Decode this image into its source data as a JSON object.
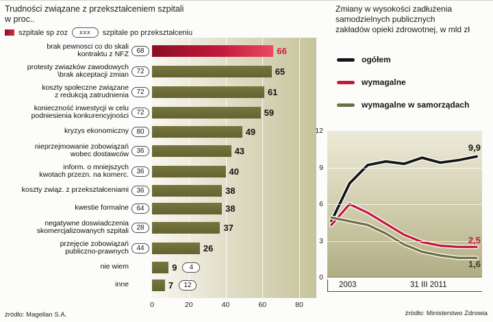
{
  "left_chart": {
    "title_lines": [
      "Trudności związane z przekształceniem szpitali",
      "w proc.."
    ],
    "legend_sq_label": "szpitale sp zoz",
    "legend_oval_text": "xxx",
    "legend_oval_label": "szpitale po przekształceniu",
    "source": "źródło: Magellan S.A."
  },
  "right_chart": {
    "title_lines": [
      "Zmiany w wysokości zadłużenia",
      "samodzielnych publicznych",
      "zakładów opieki zdrowotnej, w mld zł"
    ],
    "source": "źródło: Ministerstwo Zdrowia"
  },
  "chart_data": [
    {
      "type": "bar",
      "orientation": "horizontal",
      "title": "Trudności związane z przekształceniem szpitali w proc..",
      "xlim": [
        0,
        80
      ],
      "x_ticks": [
        0,
        20,
        40,
        60,
        80
      ],
      "bar_color": "#6a6b35",
      "highlight_color": "#cf1a3c",
      "series_names": [
        "szpitale sp zoz",
        "szpitale po przekształceniu"
      ],
      "items": [
        {
          "label_lines": [
            "brak pewnosci co do skali",
            "kontraktu z NFZ"
          ],
          "bar_value": 66,
          "oval_value": 68,
          "highlight": true
        },
        {
          "label_lines": [
            "protesty zwiazków zawodowych",
            "\\brak akceptacji zmian"
          ],
          "bar_value": 65,
          "oval_value": 72
        },
        {
          "label_lines": [
            "koszty społeczne związane",
            "z redukcją zatrudnienia"
          ],
          "bar_value": 61,
          "oval_value": 72
        },
        {
          "label_lines": [
            "konieczność inwestycji w celu",
            "podniesienia konkurencyjności"
          ],
          "bar_value": 59,
          "oval_value": 72
        },
        {
          "label_lines": [
            "kryzys ekonomiczny"
          ],
          "bar_value": 49,
          "oval_value": 80
        },
        {
          "label_lines": [
            "nieprzejmowanie zobowiązań",
            "wobec dostawców"
          ],
          "bar_value": 43,
          "oval_value": 36
        },
        {
          "label_lines": [
            "inform. o mniejszych",
            "kwotach przezn. na komerc."
          ],
          "bar_value": 40,
          "oval_value": 36
        },
        {
          "label_lines": [
            "koszty związ. z przekształceniami"
          ],
          "bar_value": 38,
          "oval_value": 36
        },
        {
          "label_lines": [
            "kwestie formalne"
          ],
          "bar_value": 38,
          "oval_value": 64
        },
        {
          "label_lines": [
            "negatywne doswiadczenia",
            "skomercjalizowanych szpitali"
          ],
          "bar_value": 37,
          "oval_value": 28
        },
        {
          "label_lines": [
            "przejęcie zobowiązań",
            "publiczno-prawnych"
          ],
          "bar_value": 26,
          "oval_value": 44
        },
        {
          "label_lines": [
            "nie wiem"
          ],
          "bar_value": 9,
          "oval_value": 4,
          "oval_after": true
        },
        {
          "label_lines": [
            "inne"
          ],
          "bar_value": 7,
          "oval_value": 12,
          "oval_after": true
        }
      ],
      "source": "źródło: Magellan S.A."
    },
    {
      "type": "line",
      "title": "Zmiany w wysokości zadłużenia samodzielnych publicznych zakładów opieki zdrowotnej, w mld zł",
      "ylim": [
        0,
        12
      ],
      "y_ticks": [
        0,
        3,
        6,
        9,
        12
      ],
      "x_labels": [
        "2003",
        "31 III 2011"
      ],
      "series": [
        {
          "name": "ogółem",
          "color": "#141414",
          "end_label": "9,9",
          "values": [
            4.6,
            7.7,
            9.2,
            9.5,
            9.3,
            9.8,
            9.4,
            9.6,
            9.9
          ]
        },
        {
          "name": "wymagalne",
          "color": "#c41938",
          "end_label": "2,5",
          "values": [
            4.3,
            6.0,
            5.3,
            4.4,
            3.5,
            2.9,
            2.6,
            2.5,
            2.5
          ]
        },
        {
          "name": "wymagalne w samorządach",
          "color": "#6f7040",
          "end_label": "1,6",
          "values": [
            4.9,
            4.6,
            4.3,
            3.6,
            2.7,
            2.1,
            1.8,
            1.6,
            1.6
          ]
        }
      ],
      "source": "źródło: Ministerstwo Zdrowia"
    }
  ]
}
